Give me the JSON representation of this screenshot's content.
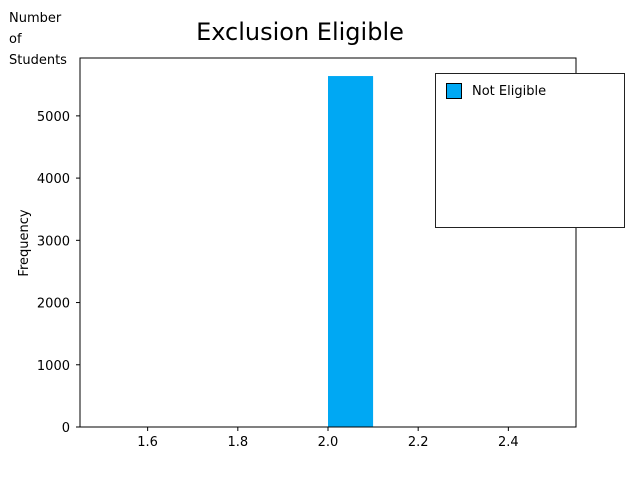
{
  "chart_data": {
    "type": "bar",
    "title": "Exclusion Eligible",
    "units_label": "Number\nof\nStudents",
    "xlabel": "",
    "ylabel": "Frequency",
    "xlim": [
      1.45,
      2.55
    ],
    "ylim": [
      0,
      5930
    ],
    "xticks": [
      "1.6",
      "1.8",
      "2.0",
      "2.2",
      "2.4"
    ],
    "yticks": [
      "0",
      "1000",
      "2000",
      "3000",
      "4000",
      "5000"
    ],
    "bars": [
      {
        "x_start": 2.0,
        "x_end": 2.1,
        "value": 5640,
        "color": "#00a8f3"
      }
    ],
    "legend": {
      "placement": "top-right",
      "entries": [
        {
          "label": "Not Eligible",
          "color": "#00a8f3"
        }
      ]
    },
    "grid": false
  }
}
